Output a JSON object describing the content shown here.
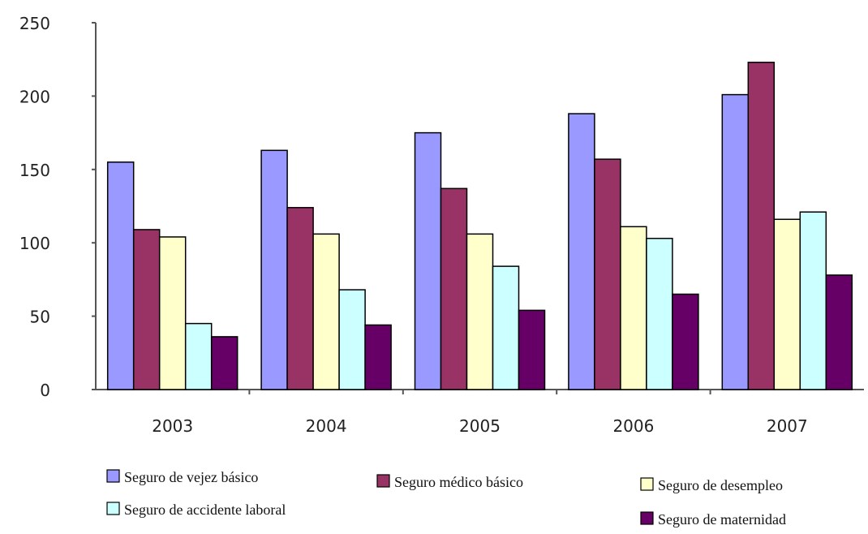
{
  "chart_data": {
    "type": "bar",
    "categories": [
      "2003",
      "2004",
      "2005",
      "2006",
      "2007"
    ],
    "series": [
      {
        "name": "Seguro de vejez básico",
        "color": "#9999ff",
        "values": [
          155,
          163,
          175,
          188,
          201
        ]
      },
      {
        "name": "Seguro médico básico",
        "color": "#993366",
        "values": [
          109,
          124,
          137,
          157,
          223
        ]
      },
      {
        "name": "Seguro de desempleo",
        "color": "#ffffcc",
        "values": [
          104,
          106,
          106,
          111,
          116
        ]
      },
      {
        "name": "Seguro de accidente laboral",
        "color": "#ccffff",
        "values": [
          45,
          68,
          84,
          103,
          121
        ]
      },
      {
        "name": "Seguro de maternidad",
        "color": "#660066",
        "values": [
          36,
          44,
          54,
          65,
          78
        ]
      }
    ],
    "ylim": [
      0,
      250
    ],
    "yticks": [
      0,
      50,
      100,
      150,
      200,
      250
    ],
    "grid": false,
    "legend_position": "bottom"
  }
}
